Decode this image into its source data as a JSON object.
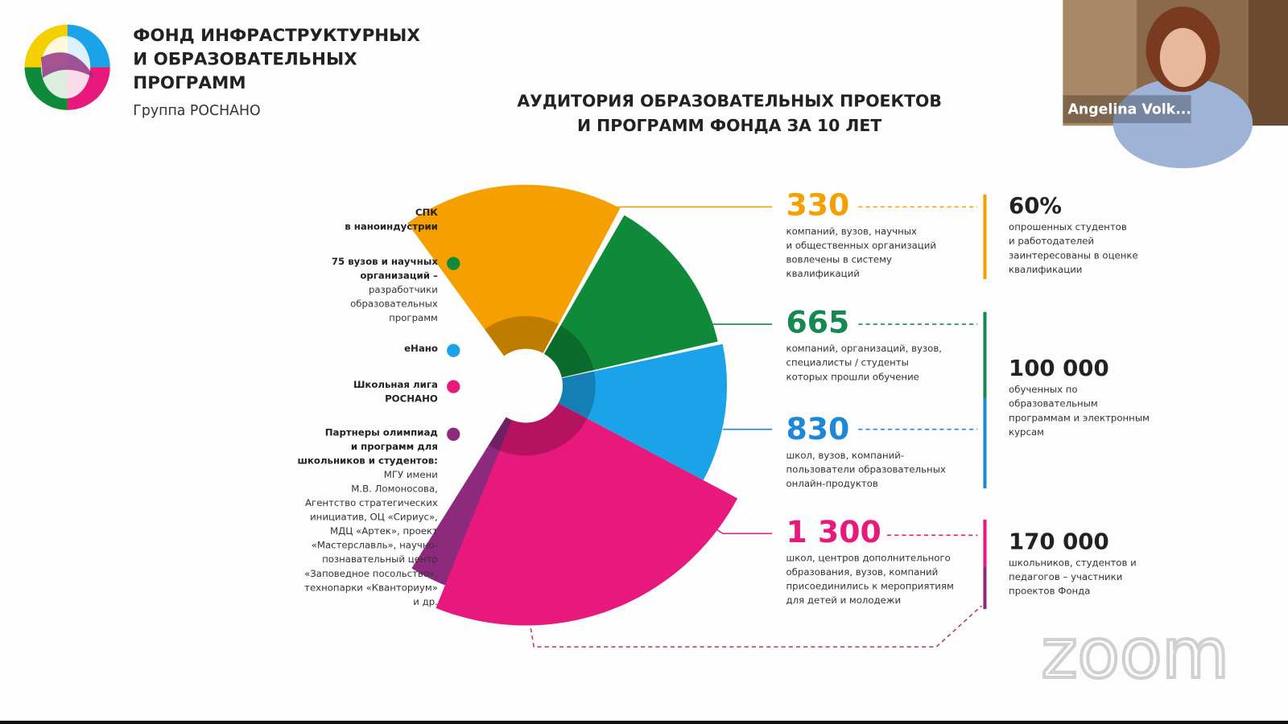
{
  "header": {
    "title_lines": [
      "ФОНД ИНФРАСТРУКТУРНЫХ",
      "И ОБРАЗОВАТЕЛЬНЫХ",
      "ПРОГРАММ"
    ],
    "subtitle": "Группа РОСНАНО"
  },
  "slide_title": [
    "АУДИТОРИЯ ОБРАЗОВАТЕЛЬНЫХ ПРОЕКТОВ",
    "И ПРОГРАММ ФОНДА ЗА 10 ЛЕТ"
  ],
  "legend": [
    {
      "bold": [
        "СПК",
        "в наноиндустрии"
      ],
      "normal": []
    },
    {
      "bold": [
        "75 вузов и научных",
        "организаций –"
      ],
      "normal": [
        "разработчики",
        "образовательных",
        "программ"
      ]
    },
    {
      "bold": [
        "еНано"
      ],
      "normal": []
    },
    {
      "bold": [
        "Школьная лига",
        "РОСНАНО"
      ],
      "normal": []
    },
    {
      "bold": [
        "Партнеры олимпиад",
        "и программ для",
        "школьников и студентов:"
      ],
      "normal": [
        "МГУ имени",
        "М.В. Ломоносова,",
        "Агентство стратегических",
        "инициатив, ОЦ «Сириус»,",
        "МДЦ «Артек», проект",
        "«Мастерславль», научно-",
        "познавательный центр",
        "«Заповедное посольство»,",
        "технопарки «Кванториум»",
        "и др."
      ]
    }
  ],
  "stats": [
    {
      "value": "330",
      "lines": [
        "компаний, вузов, научных",
        "и общественных организаций",
        "вовлечены в систему",
        "квалификаций"
      ]
    },
    {
      "value": "665",
      "lines": [
        "компаний, организаций, вузов,",
        "специалисты / студенты",
        "которых прошли обучение"
      ]
    },
    {
      "value": "830",
      "lines": [
        "школ, вузов, компаний-",
        "пользователи образовательных",
        "онлайн-продуктов"
      ]
    },
    {
      "value": "1 300",
      "lines": [
        "школ, центров дополнительного",
        "образования, вузов, компаний",
        "присоединились к мероприятиям",
        "для детей и молодежи"
      ]
    }
  ],
  "totals": [
    {
      "value": "60%",
      "lines": [
        "опрошенных студентов",
        "и работодателей",
        "заинтересованы в оценке",
        "квалификации"
      ]
    },
    {
      "value": "100 000",
      "lines": [
        "обученных по",
        "образовательным",
        "программам и электронным",
        "курсам"
      ]
    },
    {
      "value": "170 000",
      "lines": [
        "школьников, студентов и",
        "педагогов – участники",
        "проектов Фонда"
      ]
    }
  ],
  "video": {
    "name": "Angelina Volk..."
  },
  "watermark": "zoom"
}
